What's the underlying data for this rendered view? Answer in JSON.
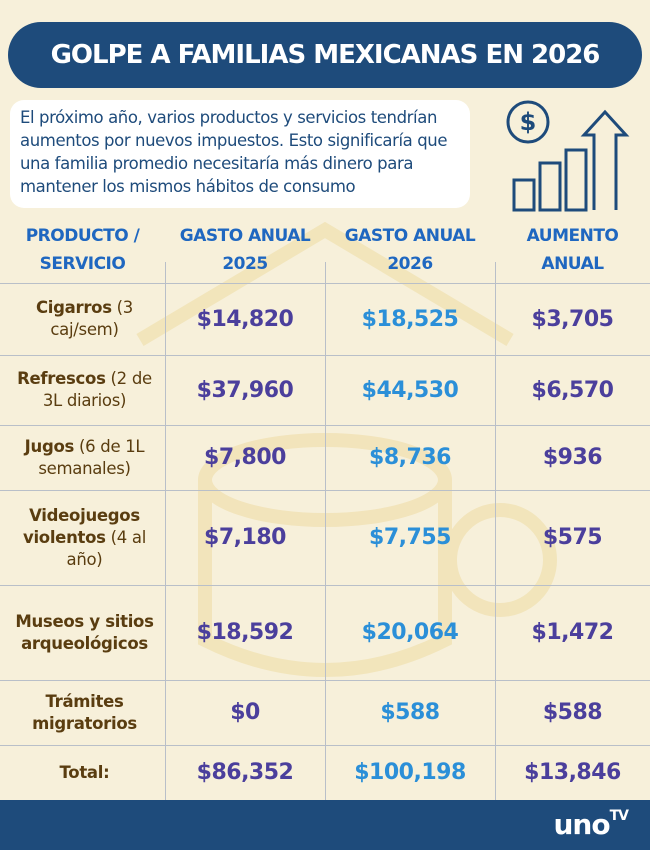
{
  "header": {
    "title": "GOLPE A FAMILIAS MEXICANAS EN 2026"
  },
  "intro": "El próximo año, varios productos y servicios tendrían aumentos por nuevos impuestos. Esto significaría que una familia promedio necesitaría más dinero para mantener los mismos hábitos de consumo",
  "table": {
    "headers": [
      "PRODUCTO / SERVICIO",
      "GASTO ANUAL 2025",
      "GASTO ANUAL 2026",
      "AUMENTO ANUAL"
    ],
    "rows": [
      {
        "product": "Cigarros",
        "detail": "(3 caj/sem)",
        "gasto_2025": "$14,820",
        "gasto_2026": "$18,525",
        "aumento": "$3,705"
      },
      {
        "product": "Refrescos",
        "detail": "(2 de 3L diarios)",
        "gasto_2025": "$37,960",
        "gasto_2026": "$44,530",
        "aumento": "$6,570"
      },
      {
        "product": "Jugos",
        "detail": "(6 de 1L semanales)",
        "gasto_2025": "$7,800",
        "gasto_2026": "$8,736",
        "aumento": "$936"
      },
      {
        "product": "Videojuegos violentos",
        "detail": "(4 al año)",
        "gasto_2025": "$7,180",
        "gasto_2026": "$7,755",
        "aumento": "$575"
      },
      {
        "product": "Museos y sitios arqueológicos",
        "detail": "",
        "gasto_2025": "$18,592",
        "gasto_2026": "$20,064",
        "aumento": "$1,472"
      },
      {
        "product": "Trámites migratorios",
        "detail": "",
        "gasto_2025": "$0",
        "gasto_2026": "$588",
        "aumento": "$588"
      }
    ],
    "total": {
      "label": "Total:",
      "gasto_2025": "$86,352",
      "gasto_2026": "$100,198",
      "aumento": "$13,846"
    }
  },
  "footer": {
    "brand": "uno",
    "brand_tv": "TV"
  }
}
